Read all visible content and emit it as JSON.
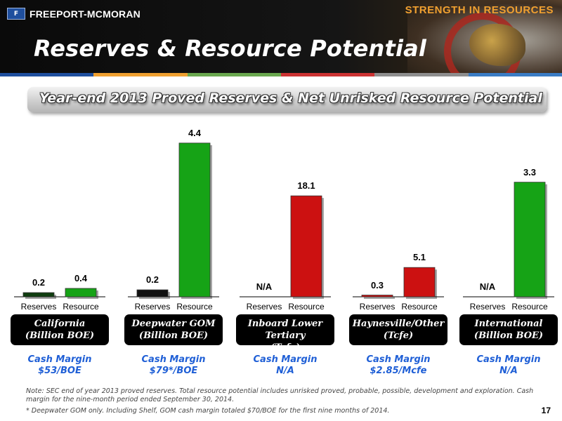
{
  "header": {
    "logo_text": "FREEPORT-MCMORAN",
    "tagline": "STRENGTH IN RESOURCES",
    "title": "Reserves & Resource Potential"
  },
  "subtitle": "Year-end 2013 Proved Reserves & Net Unrisked Resource Potential",
  "colors": {
    "reserves_california": "#0f3d0f",
    "reserves_deepwater": "#111111",
    "green": "#16a316",
    "red": "#cc1111",
    "margin_text": "#1f5fd6"
  },
  "chart_data": [
    {
      "type": "bar",
      "group": "California",
      "unit": "(Billion BOE)",
      "categories": [
        "Reserves",
        "Resource"
      ],
      "values": [
        0.2,
        0.4
      ],
      "value_labels": [
        "0.2",
        "0.4"
      ],
      "bar_colors": [
        "#0f3d0f",
        "#16a316"
      ],
      "cash_margin_label": "Cash Margin",
      "cash_margin_value": "$53/BOE"
    },
    {
      "type": "bar",
      "group": "Deepwater GOM",
      "unit": "(Billion BOE)",
      "categories": [
        "Reserves",
        "Resource"
      ],
      "values": [
        0.2,
        4.4
      ],
      "value_labels": [
        "0.2",
        "4.4"
      ],
      "bar_colors": [
        "#111111",
        "#16a316"
      ],
      "cash_margin_label": "Cash Margin",
      "cash_margin_value": "$79*/BOE"
    },
    {
      "type": "bar",
      "group": "Inboard Lower Tertiary",
      "unit": "(Tcfe)",
      "categories": [
        "Reserves",
        "Resource"
      ],
      "values": [
        0,
        18.1
      ],
      "value_labels": [
        "N/A",
        "18.1"
      ],
      "bar_colors": [
        "#111111",
        "#cc1111"
      ],
      "cash_margin_label": "Cash Margin",
      "cash_margin_value": "N/A"
    },
    {
      "type": "bar",
      "group": "Haynesville/Other",
      "unit": "(Tcfe)",
      "categories": [
        "Reserves",
        "Resource"
      ],
      "values": [
        0.3,
        5.1
      ],
      "value_labels": [
        "0.3",
        "5.1"
      ],
      "bar_colors": [
        "#cc1111",
        "#cc1111"
      ],
      "cash_margin_label": "Cash Margin",
      "cash_margin_value": "$2.85/Mcfe"
    },
    {
      "type": "bar",
      "group": "International",
      "unit": "(Billion BOE)",
      "categories": [
        "Reserves",
        "Resource"
      ],
      "values": [
        0,
        3.3
      ],
      "value_labels": [
        "N/A",
        "3.3"
      ],
      "bar_colors": [
        "#111111",
        "#16a316"
      ],
      "cash_margin_label": "Cash Margin",
      "cash_margin_value": "N/A"
    }
  ],
  "note": "Note: SEC end of year 2013 proved reserves. Total resource potential includes unrisked proved, probable, possible, development and exploration. Cash margin for the nine-month period ended September 30, 2014.",
  "footnote": "* Deepwater GOM only. Including Shelf, GOM cash margin totaled $70/BOE for the first nine months of 2014.",
  "page_number": "17"
}
